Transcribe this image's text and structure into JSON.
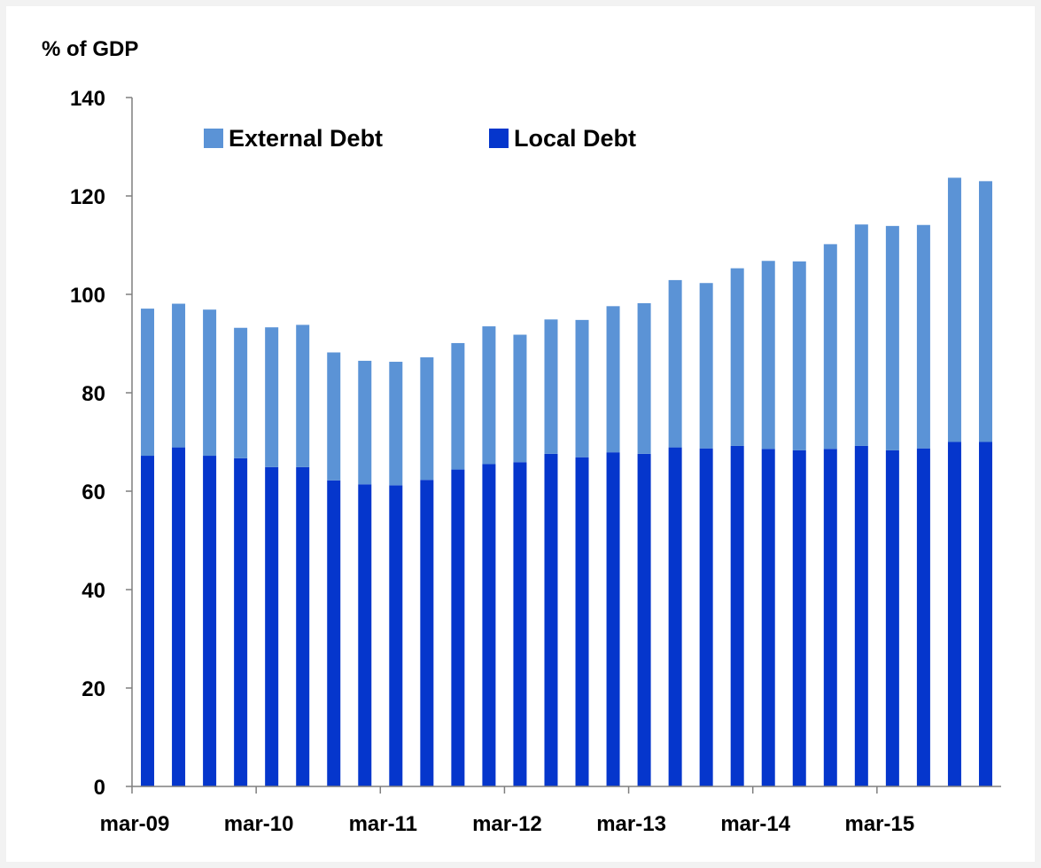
{
  "chart_data": {
    "type": "bar",
    "stacked": true,
    "ylabel": "% of GDP",
    "ylim": [
      0,
      140
    ],
    "yticks": [
      0,
      20,
      40,
      60,
      80,
      100,
      120,
      140
    ],
    "xtick_labels": [
      "mar-09",
      "mar-10",
      "mar-11",
      "mar-12",
      "mar-13",
      "mar-14",
      "mar-15"
    ],
    "xtick_positions": [
      0,
      4,
      8,
      12,
      16,
      20,
      24
    ],
    "legend_placement": "top-left",
    "grid": false,
    "colors": {
      "External Debt": "#5b93d6",
      "Local Debt": "#0536cc"
    },
    "series": [
      {
        "name": "Local Debt",
        "values": [
          67.2,
          68.9,
          67.2,
          66.7,
          64.9,
          64.9,
          62.2,
          61.4,
          61.2,
          62.3,
          64.4,
          65.5,
          65.9,
          67.6,
          66.9,
          67.9,
          67.6,
          68.9,
          68.7,
          69.2,
          68.6,
          68.3,
          68.6,
          69.2,
          68.3,
          68.7,
          70.0,
          70.0
        ]
      },
      {
        "name": "External Debt",
        "values": [
          29.9,
          29.2,
          29.7,
          26.5,
          28.4,
          28.9,
          26.0,
          25.1,
          25.1,
          24.9,
          25.7,
          28.0,
          25.9,
          27.3,
          27.9,
          29.7,
          30.6,
          34.0,
          33.6,
          36.1,
          38.2,
          38.4,
          41.6,
          45.0,
          45.6,
          45.4,
          53.7,
          53.0
        ]
      }
    ]
  }
}
